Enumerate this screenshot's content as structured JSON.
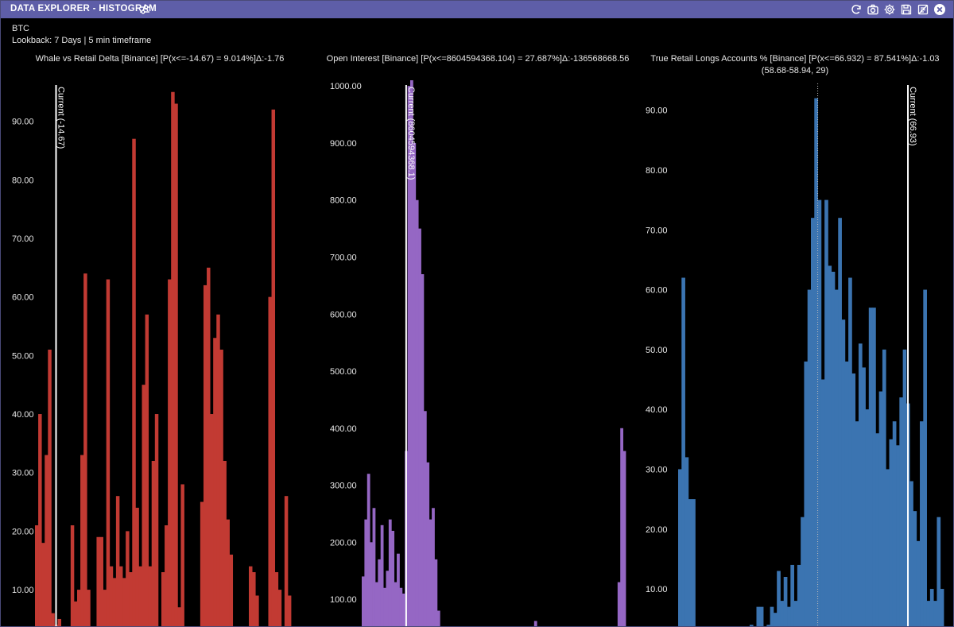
{
  "window": {
    "title": "DATA EXPLORER - HISTOGRAM",
    "asset": "BTC",
    "lookback": "Lookback: 7 Days | 5 min timeframe",
    "icons": [
      "filter-sliders-icon",
      "refresh-icon",
      "camera-icon",
      "gear-icon",
      "save-icon",
      "export-icon",
      "close-icon"
    ]
  },
  "colors": {
    "titlebar": "#5e5ea8",
    "red": "#c23a33",
    "purple": "#9567c4",
    "blue": "#3b74b1",
    "current_line": "#ffffff"
  },
  "chart_data": [
    {
      "type": "bar",
      "title": "Whale vs Retail Delta [Binance] [P(x<=-14.67) = 9.014%]Δ:-1.76",
      "color": "#c23a33",
      "ylim": [
        3.5,
        97
      ],
      "yticks": [
        10,
        20,
        30,
        40,
        50,
        60,
        70,
        80,
        90
      ],
      "ytick_labels": [
        "10.00",
        "20.00",
        "30.00",
        "40.00",
        "50.00",
        "60.00",
        "70.00",
        "80.00",
        "90.00"
      ],
      "current_label": "Current (-14.67)",
      "current_bin": 6,
      "values": [
        21,
        40,
        18,
        33,
        51,
        6,
        4,
        5,
        0,
        0,
        0,
        21,
        8,
        10,
        33,
        64,
        10,
        0,
        0,
        19,
        19,
        10,
        63,
        14,
        12,
        26,
        14,
        12,
        20,
        13,
        87,
        24,
        14,
        45,
        57,
        14,
        32,
        40,
        0,
        13,
        21,
        63,
        95,
        93,
        7,
        28,
        0,
        0,
        0,
        0,
        0,
        25,
        62,
        65,
        40,
        53,
        57,
        51,
        32,
        22,
        16,
        0,
        0,
        0,
        0,
        0,
        14,
        13,
        9,
        0,
        0,
        0,
        60,
        92,
        13,
        10,
        0,
        26,
        9
      ]
    },
    {
      "type": "bar",
      "title": "Open Interest [Binance] [P(x<=8604594368.104) = 27.687%]Δ:-136568668.56",
      "color": "#9567c4",
      "ylim": [
        50,
        1010
      ],
      "yticks": [
        100,
        200,
        300,
        400,
        500,
        600,
        700,
        800,
        900,
        1000
      ],
      "ytick_labels": [
        "100.00",
        "200.00",
        "300.00",
        "400.00",
        "500.00",
        "600.00",
        "700.00",
        "800.00",
        "900.00",
        "1000.00"
      ],
      "current_label": "Current (8604594368.1)",
      "current_bin": 16,
      "values": [
        140,
        240,
        320,
        200,
        260,
        130,
        170,
        230,
        120,
        150,
        240,
        220,
        130,
        180,
        120,
        110,
        360,
        1000,
        1010,
        900,
        800,
        750,
        670,
        430,
        340,
        240,
        260,
        170,
        80,
        50,
        0,
        0,
        0,
        0,
        0,
        0,
        0,
        0,
        0,
        0,
        0,
        0,
        0,
        0,
        0,
        0,
        0,
        0,
        0,
        0,
        0,
        0,
        0,
        0,
        0,
        0,
        0,
        0,
        0,
        0,
        0,
        0,
        0,
        0,
        62,
        0,
        0,
        0,
        0,
        0,
        0,
        0,
        0,
        0,
        0,
        0,
        0,
        0,
        0,
        0,
        0,
        0,
        0,
        0,
        0,
        0,
        0,
        0,
        0,
        0,
        0,
        0,
        0,
        0,
        0,
        130,
        400,
        360
      ]
    },
    {
      "type": "bar",
      "title": "True Retail Longs Accounts % [Binance] [P(x<=66.932) = 87.541%]Δ:-1.03",
      "subtitle": "(58.68-58.94, 29)",
      "color": "#3b74b1",
      "ylim": [
        3.5,
        95
      ],
      "yticks": [
        10,
        20,
        30,
        40,
        50,
        60,
        70,
        80,
        90
      ],
      "ytick_labels": [
        "10.00",
        "20.00",
        "30.00",
        "40.00",
        "50.00",
        "60.00",
        "70.00",
        "80.00",
        "90.00"
      ],
      "current_label": "Current (66.93)",
      "current_bin": 67,
      "values": [
        30,
        62,
        32,
        25,
        25,
        0,
        0,
        0,
        0,
        0,
        0,
        0,
        0,
        0,
        0,
        0,
        0,
        0,
        0,
        0,
        0,
        4,
        0,
        7,
        7,
        0,
        4,
        7,
        6,
        13,
        8,
        12,
        7,
        14,
        8,
        14,
        22,
        48,
        60,
        72,
        92,
        75,
        45,
        75,
        64,
        63,
        60,
        72,
        55,
        48,
        62,
        46,
        38,
        51,
        47,
        40,
        57,
        57,
        36,
        43,
        50,
        30,
        35,
        38,
        34,
        42,
        50,
        41,
        28,
        23,
        18,
        38,
        60,
        8,
        10,
        8,
        22,
        10
      ]
    }
  ]
}
